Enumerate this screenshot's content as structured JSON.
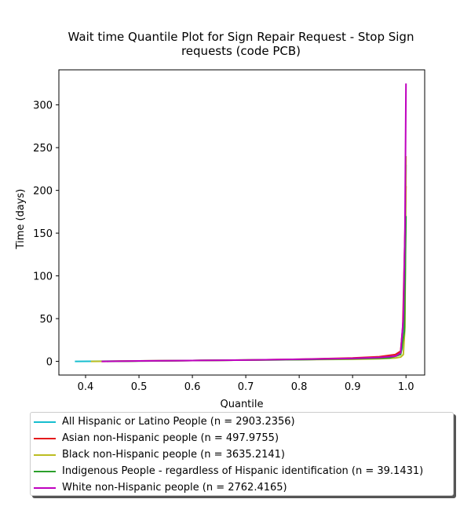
{
  "chart_data": {
    "type": "line",
    "title": "Wait time Quantile Plot for Sign Repair Request - Stop Sign requests (code PCB)",
    "title_lines": [
      "Wait time Quantile Plot for Sign Repair Request - Stop Sign",
      "requests (code PCB)"
    ],
    "xlabel": "Quantile",
    "ylabel": "Time (days)",
    "xlim": [
      0.35,
      1.035
    ],
    "ylim": [
      -16,
      341
    ],
    "xticks": [
      0.4,
      0.5,
      0.6,
      0.7,
      0.8,
      0.9,
      1.0
    ],
    "xtick_labels": [
      "0.4",
      "0.5",
      "0.6",
      "0.7",
      "0.8",
      "0.9",
      "1.0"
    ],
    "yticks": [
      0,
      50,
      100,
      150,
      200,
      250,
      300
    ],
    "ytick_labels": [
      "0",
      "50",
      "100",
      "150",
      "200",
      "250",
      "300"
    ],
    "grid": false,
    "legend_position": "below plot",
    "series": [
      {
        "name": "All Hispanic or Latino People (n = 2903.2356)",
        "color": "#17becf",
        "x": [
          0.38,
          0.5,
          0.6,
          0.7,
          0.8,
          0.9,
          0.95,
          0.98,
          0.99,
          0.995,
          0.998,
          1.0
        ],
        "y": [
          0,
          0.5,
          1,
          1.5,
          2,
          3,
          4,
          6,
          9,
          20,
          60,
          230
        ]
      },
      {
        "name": "Asian non-Hispanic people (n = 497.9755)",
        "color": "#e41a1c",
        "x": [
          0.43,
          0.5,
          0.6,
          0.7,
          0.8,
          0.9,
          0.95,
          0.98,
          0.99,
          0.994,
          0.997,
          1.0
        ],
        "y": [
          0,
          0.5,
          1,
          1.5,
          2.5,
          4,
          5.5,
          8,
          12,
          40,
          120,
          205
        ]
      },
      {
        "name": "Black non-Hispanic people (n = 3635.2141)",
        "color": "#bcbd22",
        "x": [
          0.41,
          0.5,
          0.6,
          0.7,
          0.8,
          0.9,
          0.95,
          0.98,
          0.99,
          0.995,
          0.998,
          1.0
        ],
        "y": [
          0,
          0.5,
          1,
          1.5,
          2,
          2.5,
          3,
          4,
          5,
          8,
          40,
          240
        ]
      },
      {
        "name": "Indigenous People - regardless of Hispanic identification (n = 39.1431)",
        "color": "#2ca02c",
        "x": [
          0.44,
          0.6,
          0.8,
          0.9,
          0.97,
          0.99,
          0.997,
          1.0
        ],
        "y": [
          0,
          1,
          2,
          3,
          4,
          8,
          35,
          170
        ]
      },
      {
        "name": "White non-Hispanic people (n = 2762.4165)",
        "color": "#bf00bf",
        "x": [
          0.43,
          0.5,
          0.6,
          0.7,
          0.8,
          0.9,
          0.95,
          0.98,
          0.99,
          0.995,
          0.998,
          1.0
        ],
        "y": [
          0,
          0.5,
          1,
          1.5,
          2.5,
          3.5,
          4.5,
          6,
          10,
          50,
          150,
          325
        ]
      }
    ]
  }
}
